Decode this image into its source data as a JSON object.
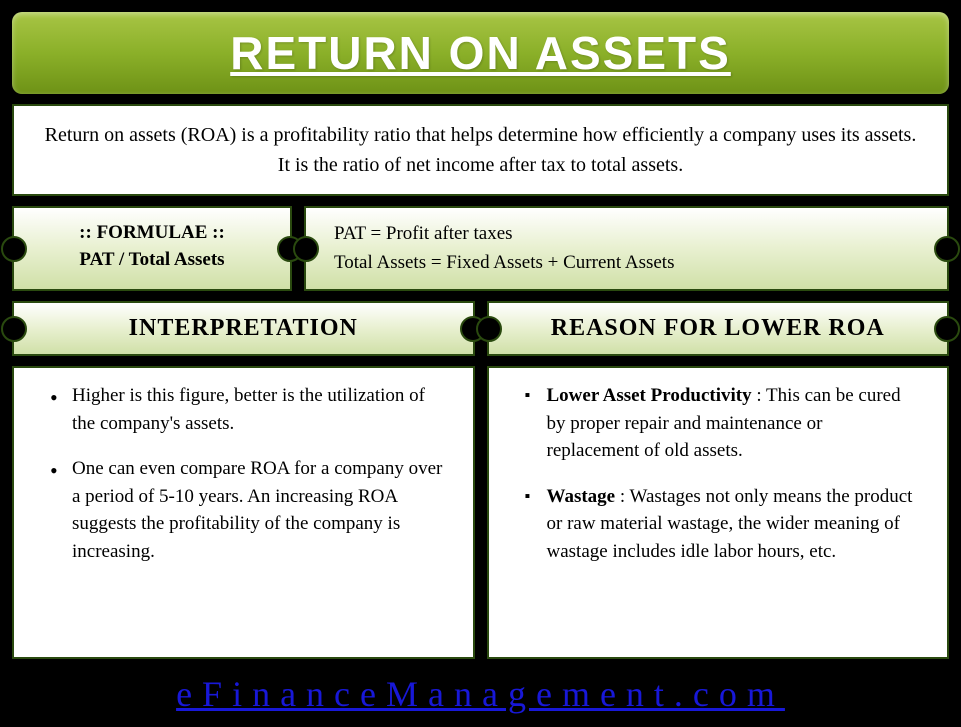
{
  "title": "RETURN ON ASSETS",
  "definition": {
    "line1": "Return on assets (ROA) is a profitability ratio that helps determine how efficiently a company uses its assets.",
    "line2": "It is the ratio of net income after tax to total assets."
  },
  "formula": {
    "header": ":: FORMULAE ::",
    "equation": "PAT / Total Assets",
    "def1": "PAT = Profit after taxes",
    "def2": "Total Assets = Fixed Assets + Current Assets"
  },
  "columns": {
    "left_header": "INTERPRETATION",
    "right_header": "REASON FOR LOWER ROA",
    "left_items": [
      "Higher is this figure, better is the utilization of the company's assets.",
      "One can even compare ROA for a company over a period of 5-10 years. An increasing ROA suggests the profitability of the company is increasing."
    ],
    "right_items": [
      {
        "bold": "Lower Asset Productivity",
        "rest": " : This can be cured by proper repair and maintenance or replacement of old assets."
      },
      {
        "bold": "Wastage",
        "rest": " : Wastages not only means the product or raw material wastage, the wider meaning of wastage includes idle labor hours, etc."
      }
    ]
  },
  "footer": "eFinanceManagement.com",
  "colors": {
    "background": "#000000",
    "banner_gradient_top": "#a8c545",
    "banner_gradient_bottom": "#6e9216",
    "border": "#2a4a0f",
    "footer_text": "#1818d8",
    "box_bg": "#ffffff"
  }
}
